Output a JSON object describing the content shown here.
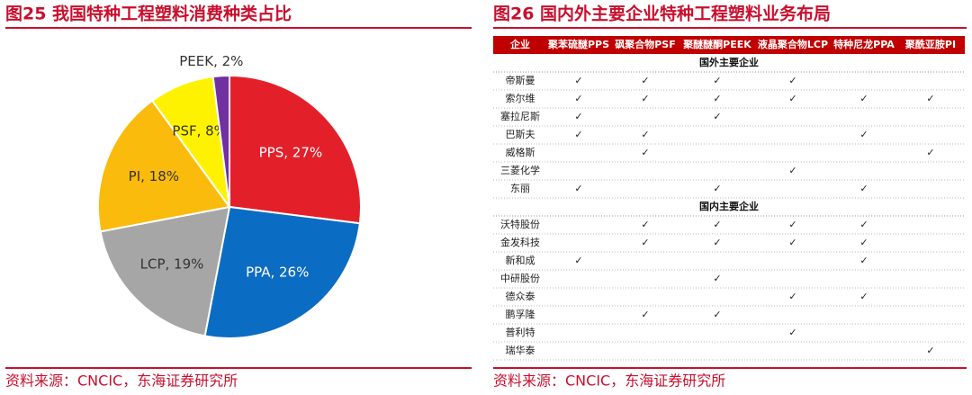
{
  "chart_data": {
    "type": "pie",
    "title": "图25 我国特种工程塑料消费种类占比",
    "values": [
      27,
      26,
      19,
      18,
      8,
      2
    ],
    "value_labels": [
      "PPS, 27%",
      "PPA, 26%",
      "LCP, 19%",
      "PI, 18%",
      "PSF, 8%",
      "PEEK, 2%"
    ],
    "colors": [
      "#e3202a",
      "#0b6cc3",
      "#a6a6a6",
      "#fbbb0c",
      "#fff200",
      "#7030a0"
    ],
    "source": "资料来源：CNCIC，东海证券研究所"
  },
  "table": {
    "title": "图26 国内外主要企业特种工程塑料业务布局",
    "header": [
      "企业",
      "聚苯硫醚PPS",
      "砜聚合物PSF",
      "聚醚醚酮PEEK",
      "液晶聚合物LCP",
      "特种尼龙PPA",
      "聚酰亚胺PI"
    ],
    "sections": [
      {
        "title": "国外主要企业",
        "rows": [
          {
            "name": "帝斯曼",
            "cells": [
              "✓",
              "✓",
              "✓",
              "✓",
              null,
              null
            ]
          },
          {
            "name": "索尔维",
            "cells": [
              "✓",
              "✓",
              "✓",
              "✓",
              "✓",
              "✓"
            ]
          },
          {
            "name": "塞拉尼斯",
            "cells": [
              "✓",
              null,
              "✓",
              null,
              null,
              null
            ]
          },
          {
            "name": "巴斯夫",
            "cells": [
              "✓",
              "✓",
              null,
              null,
              "✓",
              null
            ]
          },
          {
            "name": "威格斯",
            "cells": [
              null,
              "✓",
              null,
              null,
              null,
              "✓"
            ]
          },
          {
            "name": "三菱化学",
            "cells": [
              null,
              null,
              null,
              "✓",
              null,
              null
            ]
          },
          {
            "name": "东丽",
            "cells": [
              "✓",
              null,
              "✓",
              null,
              "✓",
              null
            ]
          }
        ]
      },
      {
        "title": "国内主要企业",
        "rows": [
          {
            "name": "沃特股份",
            "cells": [
              null,
              "✓",
              "✓",
              "✓",
              "✓",
              null
            ]
          },
          {
            "name": "金发科技",
            "cells": [
              null,
              "✓",
              "✓",
              "✓",
              "✓",
              null
            ]
          },
          {
            "name": "新和成",
            "cells": [
              "✓",
              null,
              null,
              null,
              "✓",
              null
            ]
          },
          {
            "name": "中研股份",
            "cells": [
              null,
              null,
              "✓",
              null,
              null,
              null
            ]
          },
          {
            "name": "德众泰",
            "cells": [
              null,
              null,
              null,
              "✓",
              "✓",
              null
            ]
          },
          {
            "name": "鹏孚隆",
            "cells": [
              null,
              "✓",
              "✓",
              null,
              null,
              null
            ]
          },
          {
            "name": "普利特",
            "cells": [
              null,
              null,
              null,
              "✓",
              null,
              null
            ]
          },
          {
            "name": "瑞华泰",
            "cells": [
              null,
              null,
              null,
              null,
              null,
              "✓"
            ]
          }
        ]
      }
    ],
    "source": "资料来源：CNCIC，东海证券研究所"
  }
}
